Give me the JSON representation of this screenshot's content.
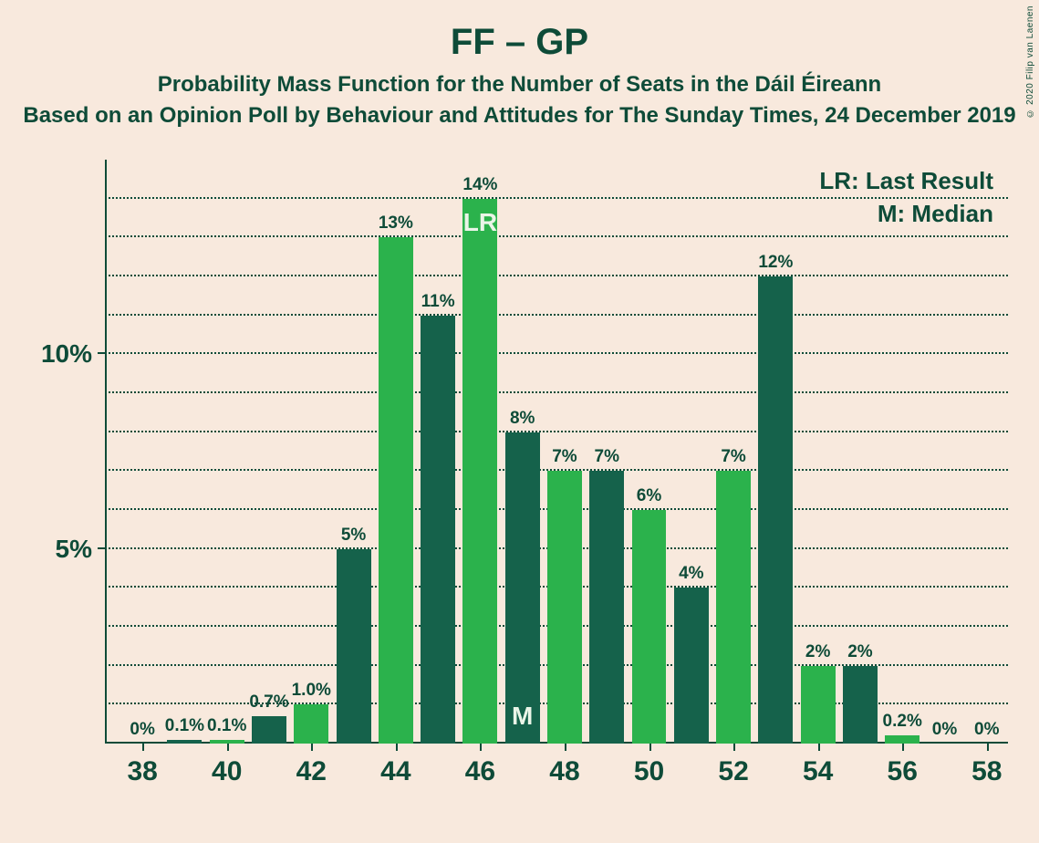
{
  "colors": {
    "background": "#f8e9dd",
    "text": "#0e4b38",
    "axis": "#0e4b38",
    "grid": "#0e4b38",
    "bar_dark": "#15624b",
    "bar_bright": "#2bb24c",
    "inner_label": "#eaf5e8"
  },
  "copyright": "© 2020 Filip van Laenen",
  "title": "FF – GP",
  "subtitle1": "Probability Mass Function for the Number of Seats in the Dáil Éireann",
  "subtitle2": "Based on an Opinion Poll by Behaviour and Attitudes for The Sunday Times, 24 December 2019",
  "legend": {
    "lr": "LR: Last Result",
    "m": "M: Median"
  },
  "chart": {
    "type": "bar",
    "y_axis": {
      "max_percent": 15,
      "grid_step": 1,
      "major_ticks": [
        5,
        10
      ],
      "tick_labels": {
        "5": "5%",
        "10": "10%"
      }
    },
    "x_axis": {
      "start": 38,
      "end": 58,
      "label_step": 2
    },
    "bars": [
      {
        "x": 38,
        "value": 0,
        "label": "0%",
        "color": "bright"
      },
      {
        "x": 39,
        "value": 0.1,
        "label": "0.1%",
        "color": "dark"
      },
      {
        "x": 40,
        "value": 0.1,
        "label": "0.1%",
        "color": "bright"
      },
      {
        "x": 41,
        "value": 0.7,
        "label": "0.7%",
        "color": "dark"
      },
      {
        "x": 42,
        "value": 1.0,
        "label": "1.0%",
        "color": "bright"
      },
      {
        "x": 43,
        "value": 5,
        "label": "5%",
        "color": "dark"
      },
      {
        "x": 44,
        "value": 13,
        "label": "13%",
        "color": "bright"
      },
      {
        "x": 45,
        "value": 11,
        "label": "11%",
        "color": "dark"
      },
      {
        "x": 46,
        "value": 14,
        "label": "14%",
        "color": "bright",
        "inner": "LR",
        "inner_pos": "top"
      },
      {
        "x": 47,
        "value": 8,
        "label": "8%",
        "color": "dark",
        "inner": "M",
        "inner_pos": "bottom"
      },
      {
        "x": 48,
        "value": 7,
        "label": "7%",
        "color": "bright"
      },
      {
        "x": 49,
        "value": 7,
        "label": "7%",
        "color": "dark"
      },
      {
        "x": 50,
        "value": 6,
        "label": "6%",
        "color": "bright"
      },
      {
        "x": 51,
        "value": 4,
        "label": "4%",
        "color": "dark"
      },
      {
        "x": 52,
        "value": 7,
        "label": "7%",
        "color": "bright"
      },
      {
        "x": 53,
        "value": 12,
        "label": "12%",
        "color": "dark"
      },
      {
        "x": 54,
        "value": 2,
        "label": "2%",
        "color": "bright"
      },
      {
        "x": 55,
        "value": 2,
        "label": "2%",
        "color": "dark"
      },
      {
        "x": 56,
        "value": 0.2,
        "label": "0.2%",
        "color": "bright"
      },
      {
        "x": 57,
        "value": 0,
        "label": "0%",
        "color": "dark"
      },
      {
        "x": 58,
        "value": 0,
        "label": "0%",
        "color": "bright"
      }
    ]
  }
}
